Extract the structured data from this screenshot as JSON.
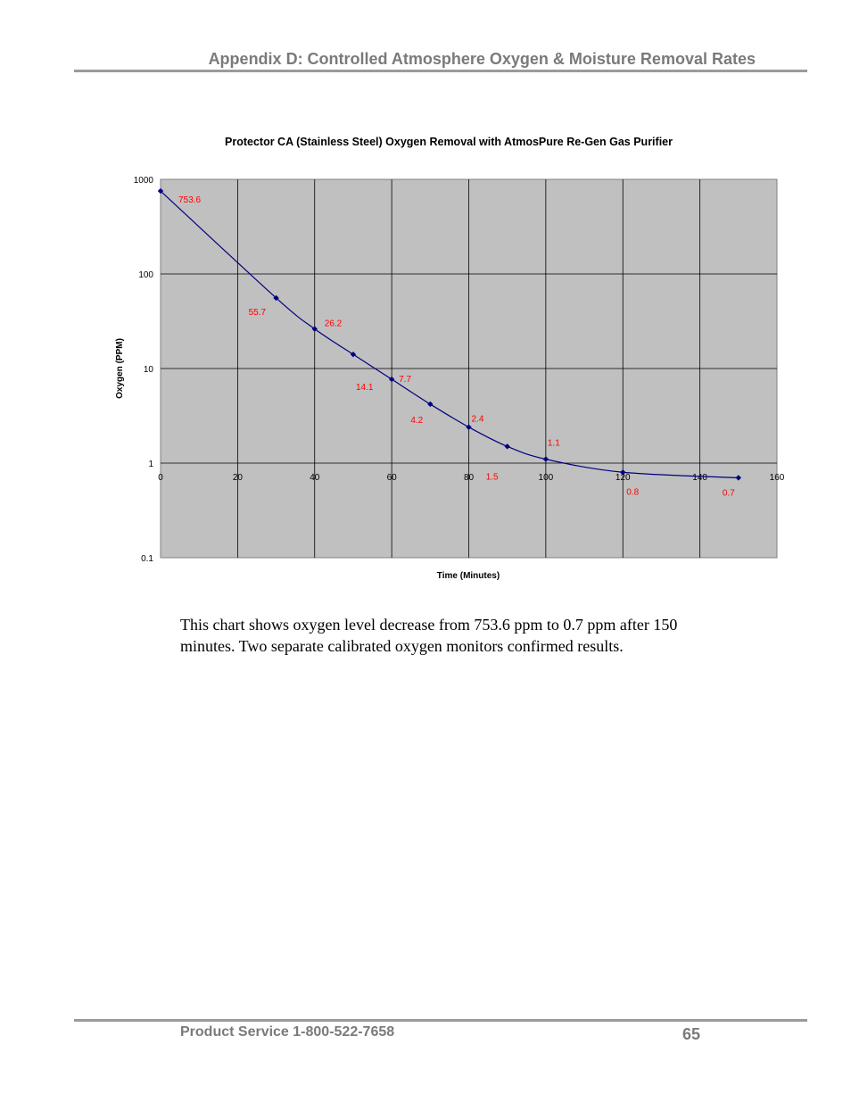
{
  "header": {
    "title": "Appendix D: Controlled Atmosphere Oxygen & Moisture Removal Rates"
  },
  "chart_data": {
    "type": "line",
    "title": "Protector CA (Stainless Steel) Oxygen Removal with AtmosPure Re-Gen Gas Purifier",
    "xlabel": "Time (Minutes)",
    "ylabel": "Oxygen (PPM)",
    "x_scale": "linear",
    "y_scale": "log",
    "xlim": [
      0,
      160
    ],
    "ylim": [
      0.1,
      1000
    ],
    "x_ticks": [
      "0",
      "20",
      "40",
      "60",
      "80",
      "100",
      "120",
      "140",
      "160"
    ],
    "y_ticks": [
      "1000",
      "100",
      "10",
      "1",
      "0.1"
    ],
    "grid": true,
    "legend": "none",
    "colors": {
      "line": "#000080",
      "labels": "#ff0000",
      "plot_bg": "#c0c0c0"
    },
    "series": [
      {
        "x": [
          0,
          30,
          40,
          50,
          60,
          70,
          80,
          90,
          100,
          120,
          150
        ],
        "y": [
          753.6,
          55.7,
          26.2,
          14.1,
          7.7,
          4.2,
          2.4,
          1.5,
          1.1,
          0.8,
          0.7
        ],
        "data_labels": [
          "753.6",
          "55.7",
          "26.2",
          "14.1",
          "7.7",
          "4.2",
          "2.4",
          "1.5",
          "1.1",
          "0.8",
          "0.7"
        ]
      }
    ]
  },
  "body": {
    "text": "This chart shows oxygen level decrease from 753.6 ppm to 0.7 ppm after 150 minutes.  Two separate calibrated oxygen monitors confirmed results."
  },
  "footer": {
    "service": "Product Service 1-800-522-7658",
    "page_number": "65"
  }
}
